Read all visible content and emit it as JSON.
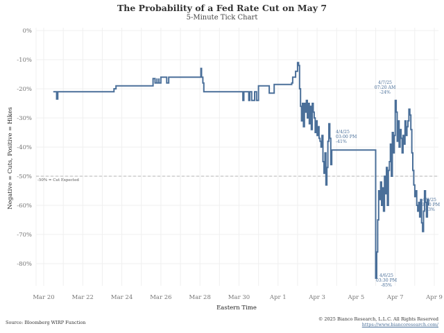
{
  "header": {
    "title": "The Probability of a Fed Rate Cut on May 7",
    "subtitle": "5-Minute Tick Chart"
  },
  "footer": {
    "source": "Source: Bloomberg WIRP Function",
    "copyright": "© 2025 Bianco Research, L.L.C. All Rights Reserved",
    "link": "https://www.biancoresearch.com/"
  },
  "colors": {
    "series": "#4a6f99",
    "reference_line": "#b3b3b3",
    "grid": "#efefef"
  },
  "chart_data": {
    "type": "line",
    "title": "The Probability of a Fed Rate Cut on May 7",
    "subtitle": "5-Minute Tick Chart",
    "xlabel": "Eastern Time",
    "ylabel": "Negative = Cuts, Positive = Hikes",
    "ylim": [
      -88,
      1
    ],
    "xlim_days": [
      -0.4,
      20.2
    ],
    "x_unit": "days since Mar 20",
    "x_tick_labels": [
      "Mar 20",
      "Mar 22",
      "Mar 24",
      "Mar 26",
      "Mar 28",
      "Mar 30",
      "Apr 1",
      "Apr 3",
      "Apr 5",
      "Apr 7",
      "Apr 9"
    ],
    "x_tick_values": [
      0,
      2,
      4,
      6,
      8,
      10,
      12,
      14,
      16,
      18,
      20
    ],
    "y_tick_labels": [
      "0%",
      "-10%",
      "-20%",
      "-30%",
      "-40%",
      "-50%",
      "-60%",
      "-70%",
      "-80%"
    ],
    "y_tick_values": [
      0,
      -10,
      -20,
      -30,
      -40,
      -50,
      -60,
      -70,
      -80
    ],
    "grid": true,
    "reference_line": {
      "y": -50,
      "label": "-50% = Cut Expected"
    },
    "series": [
      {
        "name": "Probability of Fed Rate Cut (May 7)",
        "x": [
          0.5,
          0.65,
          0.66,
          0.72,
          0.73,
          3.6,
          3.6,
          3.7,
          3.7,
          3.75,
          5.6,
          5.6,
          5.7,
          5.7,
          5.8,
          5.8,
          5.9,
          5.9,
          6.0,
          6.0,
          6.3,
          6.3,
          6.4,
          7.0,
          7.0,
          7.05,
          8.05,
          8.05,
          8.08,
          8.15,
          8.2,
          8.25,
          10.2,
          10.2,
          10.25,
          10.5,
          10.55,
          10.65,
          10.8,
          10.9,
          11.0,
          11.0,
          11.55,
          11.55,
          11.8,
          11.8,
          12.7,
          12.75,
          12.9,
          13.0,
          13.05,
          13.1,
          13.15,
          13.2,
          13.25,
          13.3,
          13.35,
          13.4,
          13.45,
          13.5,
          13.55,
          13.6,
          13.65,
          13.7,
          13.75,
          13.8,
          13.85,
          13.9,
          13.95,
          14.0,
          14.05,
          14.1,
          14.15,
          14.2,
          14.25,
          14.3,
          14.35,
          14.4,
          14.45,
          14.5,
          14.55,
          14.6,
          14.65,
          14.7,
          14.75,
          14.8,
          14.85,
          14.9,
          14.95,
          15.0,
          15.0,
          16.9,
          16.9,
          17.0,
          17.05,
          17.1,
          17.15,
          17.2,
          17.25,
          17.3,
          17.35,
          17.4,
          17.45,
          17.5,
          17.55,
          17.6,
          17.65,
          17.7,
          17.75,
          17.8,
          17.85,
          17.9,
          17.95,
          18.0,
          18.05,
          18.1,
          18.15,
          18.2,
          18.25,
          18.3,
          18.35,
          18.4,
          18.45,
          18.5,
          18.55,
          18.6,
          18.65,
          18.7,
          18.75,
          18.8,
          18.85,
          18.9,
          18.95,
          19.0,
          19.05,
          19.1,
          19.15,
          19.2,
          19.25,
          19.3,
          19.35,
          19.4,
          19.45,
          19.5,
          19.55,
          19.6,
          19.65,
          19.7
        ],
        "y": [
          -21,
          -21,
          -23.5,
          -21,
          -21,
          -21,
          -20,
          -20,
          -19,
          -19,
          -19,
          -16.5,
          -16.5,
          -18,
          -16.5,
          -18,
          -16.5,
          -18,
          -16.5,
          -16,
          -16,
          -18,
          -16,
          -16,
          -16,
          -16,
          -16,
          -13,
          -16,
          -18,
          -21,
          -21,
          -21,
          -24,
          -21,
          -24,
          -21,
          -24,
          -21,
          -24,
          -21,
          -19,
          -19,
          -21.5,
          -19,
          -18.5,
          -18,
          -16,
          -14,
          -11,
          -12,
          -20,
          -26,
          -31,
          -25,
          -33,
          -25,
          -28,
          -24,
          -30,
          -25,
          -32,
          -26,
          -34,
          -25,
          -28,
          -30,
          -35,
          -31,
          -36,
          -33,
          -37,
          -38,
          -40,
          -36,
          -45,
          -49,
          -42,
          -53,
          -47,
          -38,
          -32,
          -37,
          -46,
          -41,
          -41,
          -41,
          -41,
          -41,
          -41,
          -41,
          -41,
          -41,
          -85,
          -76,
          -65,
          -55,
          -58,
          -52,
          -60,
          -54,
          -62,
          -50,
          -56,
          -47,
          -60,
          -48,
          -45,
          -39,
          -50,
          -35,
          -42,
          -36,
          -24,
          -28,
          -38,
          -31,
          -40,
          -34,
          -37,
          -42,
          -36,
          -39,
          -31,
          -36,
          -33,
          -31,
          -27,
          -29,
          -34,
          -42,
          -48,
          -53,
          -57,
          -55,
          -60,
          -62,
          -59,
          -64,
          -58,
          -66,
          -69,
          -62,
          -55,
          -59,
          -64,
          -58,
          -60
        ]
      }
    ],
    "annotations": [
      {
        "line1": "4/4/25",
        "line2": "03:00 PM",
        "line3": "-41%",
        "x": 15.0,
        "y": -41
      },
      {
        "line1": "4/7/25",
        "line2": "07:20 AM",
        "line3": "-24%",
        "x": 17.95,
        "y": -24
      },
      {
        "line1": "4/6/25",
        "line2": "03:30 PM",
        "line3": "-85%",
        "x": 16.9,
        "y": -85
      },
      {
        "line1": "4/8/25",
        "line2": "09:30 PM",
        "line3": "-63%",
        "x": 19.7,
        "y": -63
      }
    ]
  }
}
